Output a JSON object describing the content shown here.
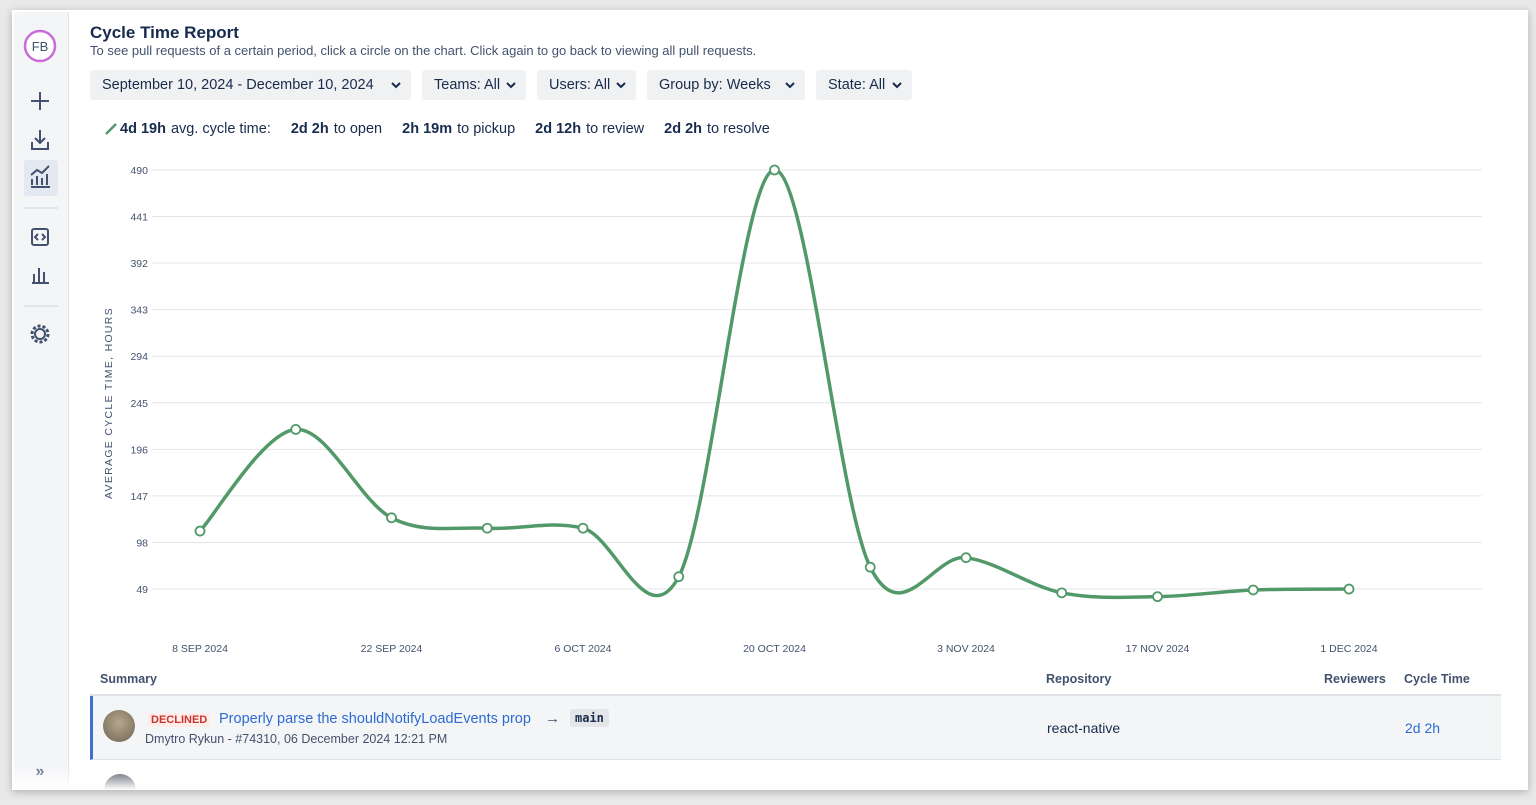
{
  "sidebar": {
    "logo": "FB",
    "expand": "»"
  },
  "header": {
    "title": "Cycle Time Report",
    "subtitle": "To see pull requests of a certain period, click a circle on the chart. Click again to go back to viewing all pull requests."
  },
  "filters": [
    "September 10, 2024 - December 10, 2024",
    "Teams: All",
    "Users: All",
    "Group by: Weeks",
    "State: All"
  ],
  "stats": {
    "total": {
      "value": "4d 19h",
      "label": "avg. cycle time:"
    },
    "phases": [
      {
        "value": "2d 2h",
        "label": "to open"
      },
      {
        "value": "2h 19m",
        "label": "to pickup"
      },
      {
        "value": "2d 12h",
        "label": "to review"
      },
      {
        "value": "2d 2h",
        "label": "to resolve"
      }
    ]
  },
  "chart_data": {
    "type": "line",
    "y_label": "AVERAGE CYCLE TIME, HOURS",
    "categories": [
      "8 SEP 2024",
      null,
      "22 SEP 2024",
      null,
      "6 OCT 2024",
      null,
      "20 OCT 2024",
      null,
      "3 NOV 2024",
      null,
      "17 NOV 2024",
      null,
      "1 DEC 2024"
    ],
    "values": [
      110,
      217,
      124,
      113,
      113,
      62,
      490,
      72,
      82,
      45,
      41,
      48,
      49
    ],
    "color": "#52996a",
    "ylim": [
      0,
      490
    ],
    "yticks": [
      49,
      98,
      147,
      196,
      245,
      294,
      343,
      392,
      441,
      490
    ],
    "grid": true
  },
  "table": {
    "columns": [
      "Summary",
      "Repository",
      "Reviewers",
      "Cycle Time"
    ],
    "rows": [
      {
        "state": "DECLINED",
        "title": "Properly parse the shouldNotifyLoadEvents prop",
        "arrow": "→",
        "branch": "main",
        "meta": "Dmytro Rykun - #74310, 06 December 2024 12:21 PM",
        "repository": "react-native",
        "cycle_time": "2d 2h"
      }
    ]
  }
}
